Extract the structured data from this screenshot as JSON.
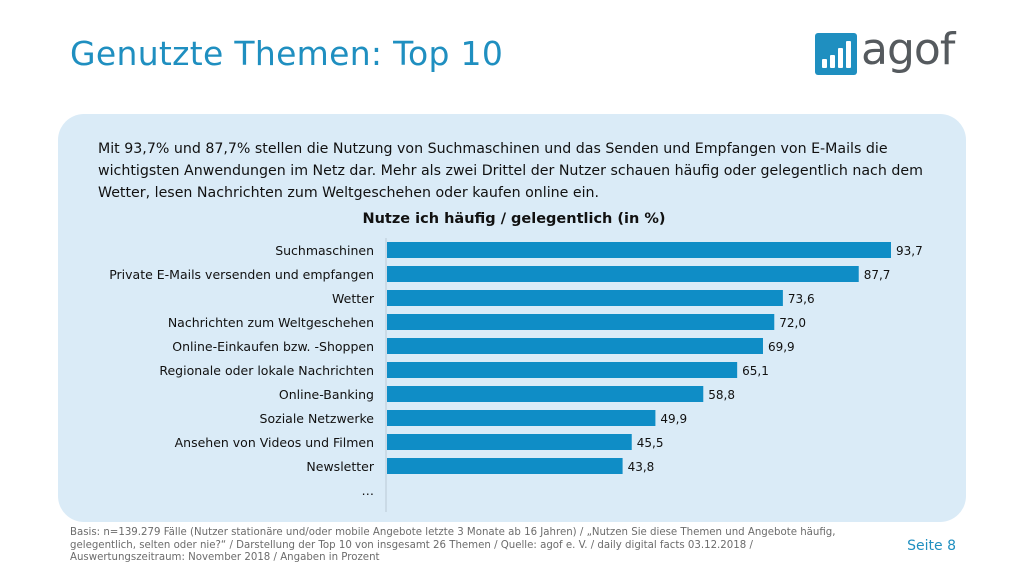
{
  "page": {
    "title": "Genutzte Themen: Top 10",
    "logo_text": "agof",
    "intro": "Mit 93,7% und 87,7% stellen die Nutzung von Suchmaschinen und das Senden und Empfangen von E-Mails die wichtigsten Anwendungen im Netz dar. Mehr als zwei Drittel der Nutzer schauen häufig oder gelegentlich nach dem Wetter, lesen Nachrichten zum Weltgeschehen oder kaufen online ein.",
    "footer": "Basis: n=139.279 Fälle (Nutzer stationäre und/oder mobile Angebote letzte 3 Monate ab 16 Jahren) / „Nutzen Sie diese Themen und Angebote häufig, gelegentlich, selten oder nie?“ / Darstellung der Top 10 von insgesamt 26 Themen / Quelle: agof e. V. / daily digital facts 03.12.2018 / Auswertungszeitraum: November 2018 / Angaben in Prozent",
    "page_number": "Seite 8"
  },
  "colors": {
    "accent": "#1f8fc0",
    "bar": "#0f8dc6",
    "panel": "#daebf7"
  },
  "chart_data": {
    "type": "bar",
    "orientation": "horizontal",
    "title": "Nutze ich häufig / gelegentlich (in %)",
    "categories": [
      "Suchmaschinen",
      "Private E-Mails versenden und empfangen",
      "Wetter",
      "Nachrichten zum Weltgeschehen",
      "Online-Einkaufen bzw. -Shoppen",
      "Regionale oder lokale Nachrichten",
      "Online-Banking",
      "Soziale Netzwerke",
      "Ansehen von Videos und Filmen",
      "Newsletter"
    ],
    "values": [
      93.7,
      87.7,
      73.6,
      72.0,
      69.9,
      65.1,
      58.8,
      49.9,
      45.5,
      43.8
    ],
    "value_labels": [
      "93,7",
      "87,7",
      "73,6",
      "72,0",
      "69,9",
      "65,1",
      "58,8",
      "49,9",
      "45,5",
      "43,8"
    ],
    "trailing_label": "…",
    "xlim": [
      0,
      100
    ],
    "grid": false,
    "legend": "none"
  }
}
